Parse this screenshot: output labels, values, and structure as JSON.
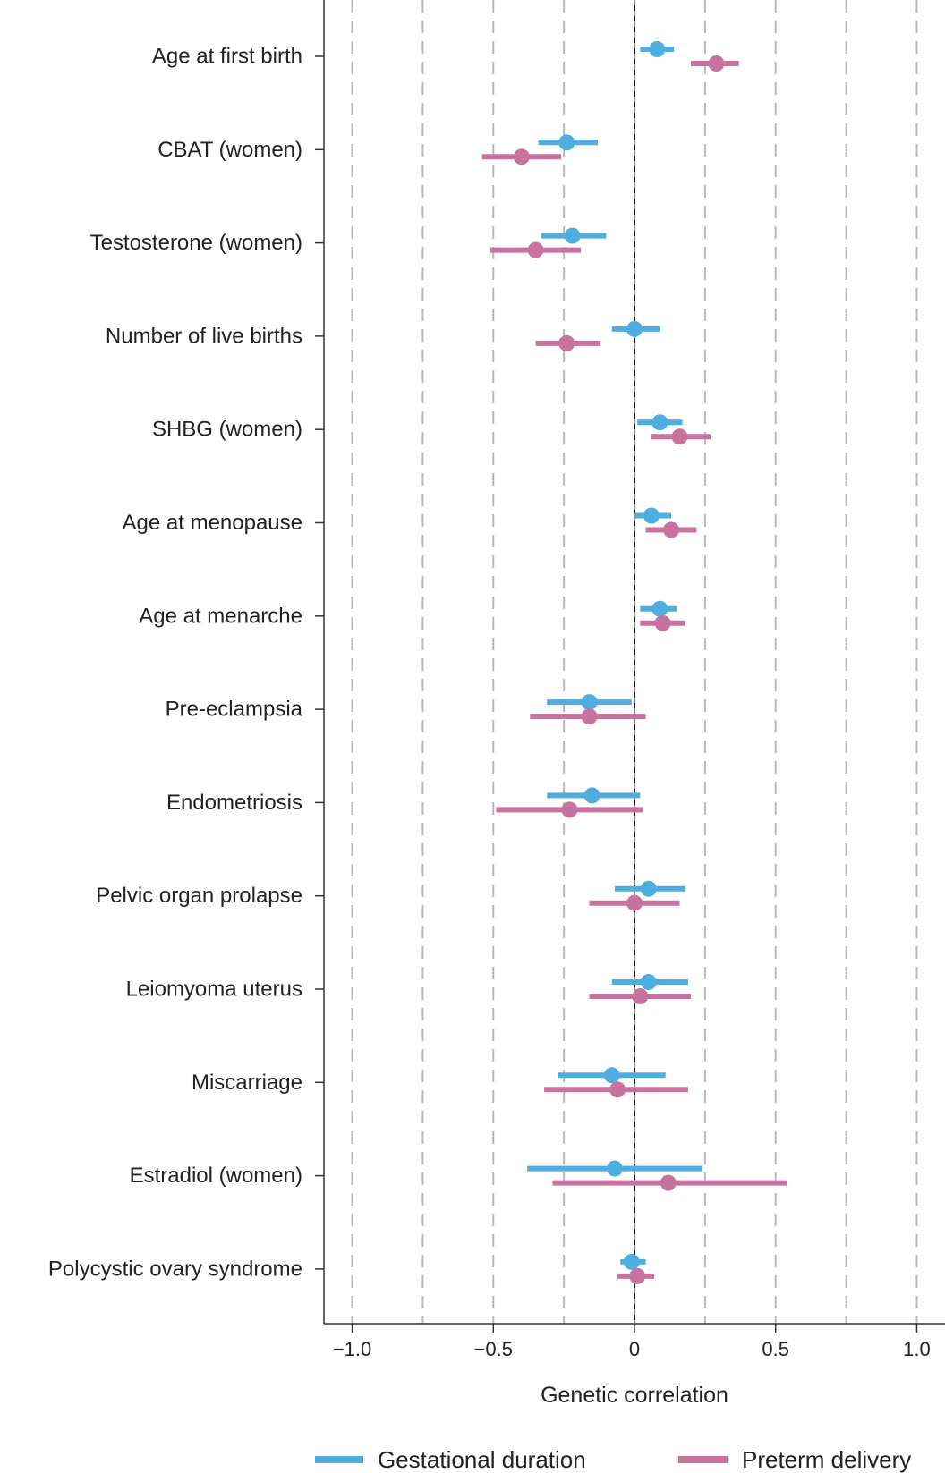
{
  "chart_data": {
    "type": "forest",
    "xlabel": "Genetic correlation",
    "xlim": [
      -1.1,
      1.1
    ],
    "xticks": [
      -1.0,
      -0.5,
      0,
      0.5,
      1.0
    ],
    "xtick_labels": [
      "−1.0",
      "−0.5",
      "0",
      "0.5",
      "1.0"
    ],
    "gridlines_at": [
      -1.0,
      -0.75,
      -0.5,
      -0.25,
      0.25,
      0.5,
      0.75,
      1.0
    ],
    "reference_line": 0,
    "categories": [
      "Age at first birth",
      "CBAT (women)",
      "Testosterone (women)",
      "Number of live births",
      "SHBG (women)",
      "Age at menopause",
      "Age at menarche",
      "Pre-eclampsia",
      "Endometriosis",
      "Pelvic organ prolapse",
      "Leiomyoma uterus",
      "Miscarriage",
      "Estradiol (women)",
      "Polycystic ovary syndrome"
    ],
    "series": [
      {
        "name": "Gestational duration",
        "color": "#4FAEE0",
        "estimates": [
          0.08,
          -0.24,
          -0.22,
          0.0,
          0.09,
          0.06,
          0.09,
          -0.16,
          -0.15,
          0.05,
          0.05,
          -0.08,
          -0.07,
          -0.01
        ],
        "lower": [
          0.02,
          -0.34,
          -0.33,
          -0.08,
          0.01,
          0.0,
          0.02,
          -0.31,
          -0.31,
          -0.07,
          -0.08,
          -0.27,
          -0.38,
          -0.05
        ],
        "upper": [
          0.14,
          -0.13,
          -0.1,
          0.09,
          0.17,
          0.13,
          0.15,
          -0.01,
          0.02,
          0.18,
          0.19,
          0.11,
          0.24,
          0.04
        ]
      },
      {
        "name": "Preterm delivery",
        "color": "#C8739F",
        "estimates": [
          0.29,
          -0.4,
          -0.35,
          -0.24,
          0.16,
          0.13,
          0.1,
          -0.16,
          -0.23,
          0.0,
          0.02,
          -0.06,
          0.12,
          0.01
        ],
        "lower": [
          0.2,
          -0.54,
          -0.51,
          -0.35,
          0.06,
          0.04,
          0.02,
          -0.37,
          -0.49,
          -0.16,
          -0.16,
          -0.32,
          -0.29,
          -0.06
        ],
        "upper": [
          0.37,
          -0.26,
          -0.19,
          -0.12,
          0.27,
          0.22,
          0.18,
          0.04,
          0.03,
          0.16,
          0.2,
          0.19,
          0.54,
          0.07
        ]
      }
    ],
    "legend": {
      "position": "bottom"
    }
  }
}
